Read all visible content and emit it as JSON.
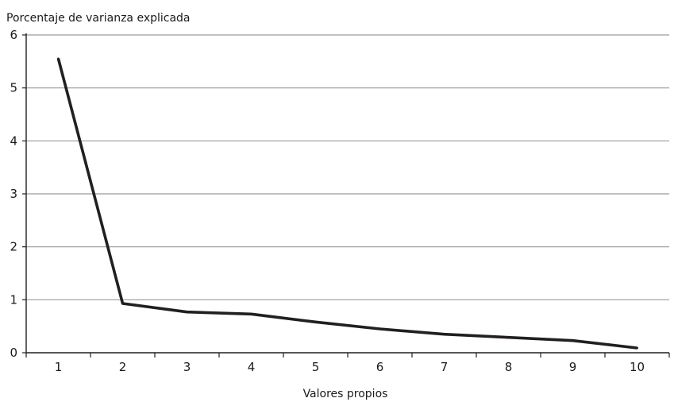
{
  "chart_data": {
    "type": "line",
    "title": "",
    "ylabel": "Porcentaje de varianza explicada",
    "xlabel": "Valores propios",
    "x": [
      1,
      2,
      3,
      4,
      5,
      6,
      7,
      8,
      9,
      10
    ],
    "x_tick_labels": [
      "1",
      "2",
      "3",
      "4",
      "5",
      "6",
      "7",
      "8",
      "9",
      "10"
    ],
    "series": [
      {
        "values": [
          5.55,
          0.93,
          0.77,
          0.73,
          0.58,
          0.45,
          0.35,
          0.29,
          0.23,
          0.09
        ]
      }
    ],
    "ylim": [
      0,
      6
    ],
    "y_ticks": [
      0,
      1,
      2,
      3,
      4,
      5,
      6
    ],
    "y_tick_labels": [
      "0",
      "1",
      "2",
      "3",
      "4",
      "5",
      "6"
    ],
    "grid": true,
    "legend": "none",
    "colors": {
      "line": "#231f20",
      "grid": "#9a9a9a",
      "axis": "#231f20"
    }
  }
}
